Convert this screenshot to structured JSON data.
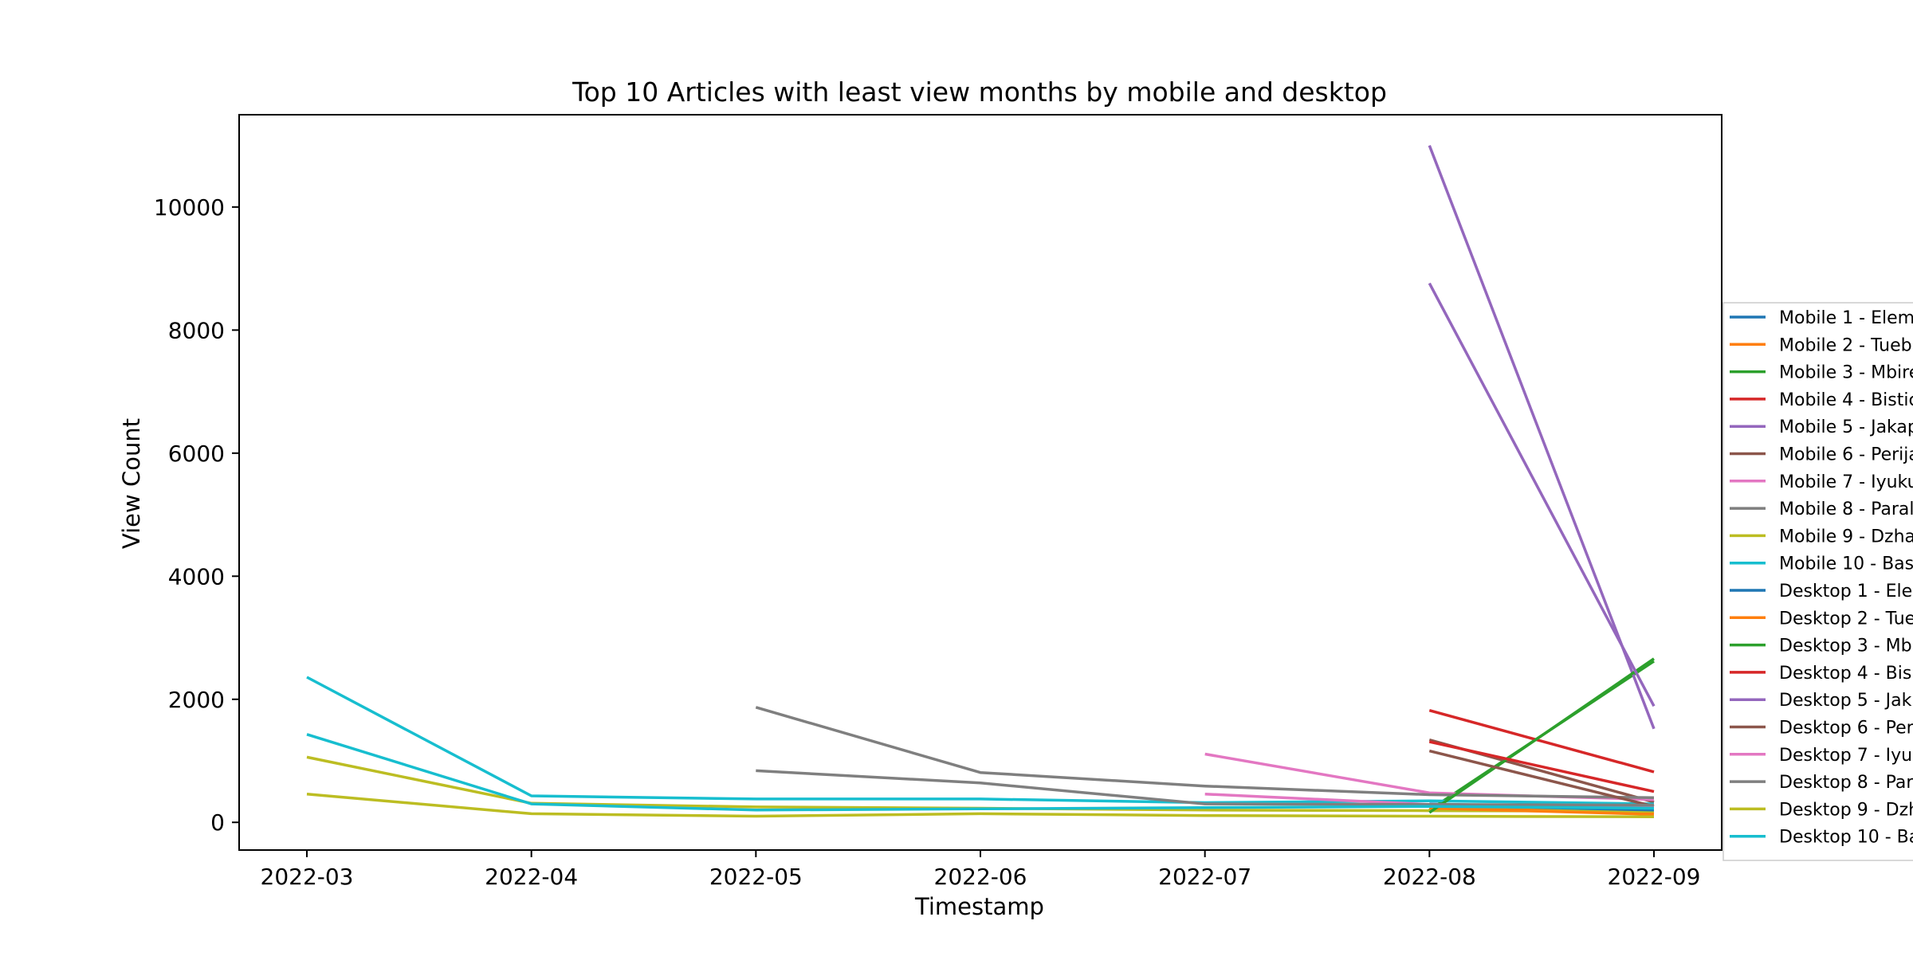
{
  "chart_data": {
    "type": "line",
    "title": "Top 10 Articles with least view months by mobile and desktop",
    "xlabel": "Timestamp",
    "ylabel": "View Count",
    "x_ticks": [
      "2022-03",
      "2022-04",
      "2022-05",
      "2022-06",
      "2022-07",
      "2022-08",
      "2022-09"
    ],
    "y_ticks": [
      0,
      2000,
      4000,
      6000,
      8000,
      10000
    ],
    "ylim": [
      -450,
      11500
    ],
    "grid": false,
    "legend_position": "right, partially clipped",
    "series": [
      {
        "name": "Mobile 1 - Elem",
        "color": "#1f77b4",
        "points": [
          [
            "2022-08",
            300
          ],
          [
            "2022-09",
            220
          ]
        ]
      },
      {
        "name": "Mobile 2 - Tueb",
        "color": "#ff7f0e",
        "points": [
          [
            "2022-08",
            250
          ],
          [
            "2022-09",
            150
          ]
        ]
      },
      {
        "name": "Mobile 3 - Mbire",
        "color": "#2ca02c",
        "points": [
          [
            "2022-08",
            200
          ],
          [
            "2022-09",
            2620
          ]
        ]
      },
      {
        "name": "Mobile 4 - Bistic",
        "color": "#d62728",
        "points": [
          [
            "2022-08",
            1820
          ],
          [
            "2022-09",
            820
          ]
        ]
      },
      {
        "name": "Mobile 5 - Jakap",
        "color": "#9467bd",
        "points": [
          [
            "2022-08",
            11000
          ],
          [
            "2022-09",
            1520
          ]
        ]
      },
      {
        "name": "Mobile 6 - Perija",
        "color": "#8c564b",
        "points": [
          [
            "2022-08",
            1340
          ],
          [
            "2022-09",
            330
          ]
        ]
      },
      {
        "name": "Mobile 7 - Iyuku",
        "color": "#e377c2",
        "points": [
          [
            "2022-07",
            1110
          ],
          [
            "2022-08",
            480
          ],
          [
            "2022-09",
            370
          ]
        ]
      },
      {
        "name": "Mobile 8 - Paral",
        "color": "#7f7f7f",
        "points": [
          [
            "2022-05",
            1870
          ],
          [
            "2022-06",
            810
          ],
          [
            "2022-07",
            590
          ],
          [
            "2022-08",
            450
          ],
          [
            "2022-09",
            400
          ]
        ]
      },
      {
        "name": "Mobile 9 - Dzha",
        "color": "#bcbd22",
        "points": [
          [
            "2022-03",
            1060
          ],
          [
            "2022-04",
            310
          ],
          [
            "2022-05",
            250
          ],
          [
            "2022-06",
            230
          ],
          [
            "2022-07",
            200
          ],
          [
            "2022-08",
            190
          ],
          [
            "2022-09",
            180
          ]
        ]
      },
      {
        "name": "Mobile 10 - Bas",
        "color": "#17becf",
        "points": [
          [
            "2022-03",
            2360
          ],
          [
            "2022-04",
            430
          ],
          [
            "2022-05",
            380
          ],
          [
            "2022-06",
            380
          ],
          [
            "2022-07",
            320
          ],
          [
            "2022-08",
            350
          ],
          [
            "2022-09",
            300
          ]
        ]
      },
      {
        "name": "Desktop 1 - Ele",
        "color": "#1f77b4",
        "points": [
          [
            "2022-08",
            280
          ],
          [
            "2022-09",
            200
          ]
        ]
      },
      {
        "name": "Desktop 2 - Tue",
        "color": "#ff7f0e",
        "points": [
          [
            "2022-08",
            230
          ],
          [
            "2022-09",
            130
          ]
        ]
      },
      {
        "name": "Desktop 3 - Mb",
        "color": "#2ca02c",
        "points": [
          [
            "2022-08",
            160
          ],
          [
            "2022-09",
            2660
          ]
        ]
      },
      {
        "name": "Desktop 4 - Bis",
        "color": "#d62728",
        "points": [
          [
            "2022-08",
            1310
          ],
          [
            "2022-09",
            500
          ]
        ]
      },
      {
        "name": "Desktop 5 - Jak",
        "color": "#9467bd",
        "points": [
          [
            "2022-08",
            8760
          ],
          [
            "2022-09",
            1890
          ]
        ]
      },
      {
        "name": "Desktop 6 - Per",
        "color": "#8c564b",
        "points": [
          [
            "2022-08",
            1160
          ],
          [
            "2022-09",
            260
          ]
        ]
      },
      {
        "name": "Desktop 7 - Iyu",
        "color": "#e377c2",
        "points": [
          [
            "2022-07",
            460
          ],
          [
            "2022-08",
            290
          ],
          [
            "2022-09",
            240
          ]
        ]
      },
      {
        "name": "Desktop 8 - Par",
        "color": "#7f7f7f",
        "points": [
          [
            "2022-05",
            840
          ],
          [
            "2022-06",
            640
          ],
          [
            "2022-07",
            300
          ],
          [
            "2022-08",
            290
          ],
          [
            "2022-09",
            280
          ]
        ]
      },
      {
        "name": "Desktop 9 - Dzh",
        "color": "#bcbd22",
        "points": [
          [
            "2022-03",
            460
          ],
          [
            "2022-04",
            140
          ],
          [
            "2022-05",
            100
          ],
          [
            "2022-06",
            140
          ],
          [
            "2022-07",
            110
          ],
          [
            "2022-08",
            100
          ],
          [
            "2022-09",
            90
          ]
        ]
      },
      {
        "name": "Desktop 10 - Ba",
        "color": "#17becf",
        "points": [
          [
            "2022-03",
            1430
          ],
          [
            "2022-04",
            300
          ],
          [
            "2022-05",
            200
          ],
          [
            "2022-06",
            220
          ],
          [
            "2022-07",
            240
          ],
          [
            "2022-08",
            260
          ],
          [
            "2022-09",
            230
          ]
        ]
      }
    ]
  }
}
